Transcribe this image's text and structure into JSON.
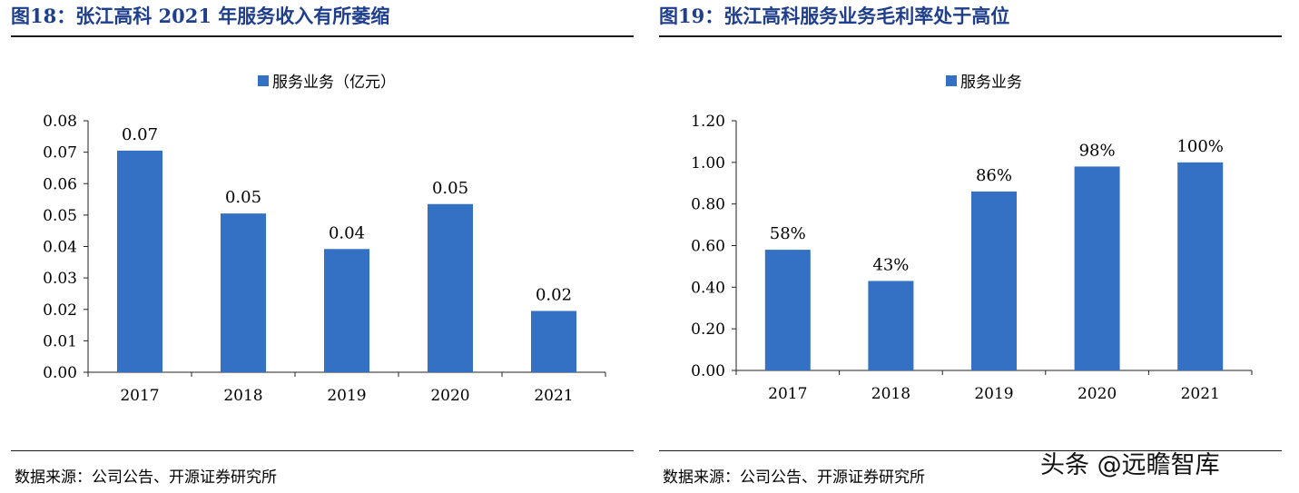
{
  "panels": {
    "left": {
      "title": "图18：张江高科 2021 年服务收入有所萎缩",
      "source": "数据来源：公司公告、开源证券研究所"
    },
    "right": {
      "title": "图19：张江高科服务业务毛利率处于高位",
      "source": "数据来源：公司公告、开源证券研究所"
    }
  },
  "watermark": "头条 @远瞻智库",
  "colors": {
    "bar": "#3470c4",
    "title": "#1f3f8c"
  },
  "chart_data": [
    {
      "type": "bar",
      "title": "",
      "xlabel": "",
      "ylabel": "",
      "legend": "服务业务（亿元）",
      "legend_position": "top-center",
      "categories": [
        "2017",
        "2018",
        "2019",
        "2020",
        "2021"
      ],
      "values": [
        0.0705,
        0.0505,
        0.0392,
        0.0535,
        0.0195
      ],
      "data_labels": [
        "0.07",
        "0.05",
        "0.04",
        "0.05",
        "0.02"
      ],
      "ylim": [
        0,
        0.08
      ],
      "yticks": [
        "0.00",
        "0.01",
        "0.02",
        "0.03",
        "0.04",
        "0.05",
        "0.06",
        "0.07",
        "0.08"
      ],
      "grid": false
    },
    {
      "type": "bar",
      "title": "",
      "xlabel": "",
      "ylabel": "",
      "legend": "服务业务",
      "legend_position": "top-center",
      "categories": [
        "2017",
        "2018",
        "2019",
        "2020",
        "2021"
      ],
      "values": [
        0.58,
        0.43,
        0.86,
        0.98,
        1.0
      ],
      "data_labels": [
        "58%",
        "43%",
        "86%",
        "98%",
        "100%"
      ],
      "ylim": [
        0,
        1.2
      ],
      "yticks": [
        "0.00",
        "0.20",
        "0.40",
        "0.60",
        "0.80",
        "1.00",
        "1.20"
      ],
      "grid": false
    }
  ]
}
